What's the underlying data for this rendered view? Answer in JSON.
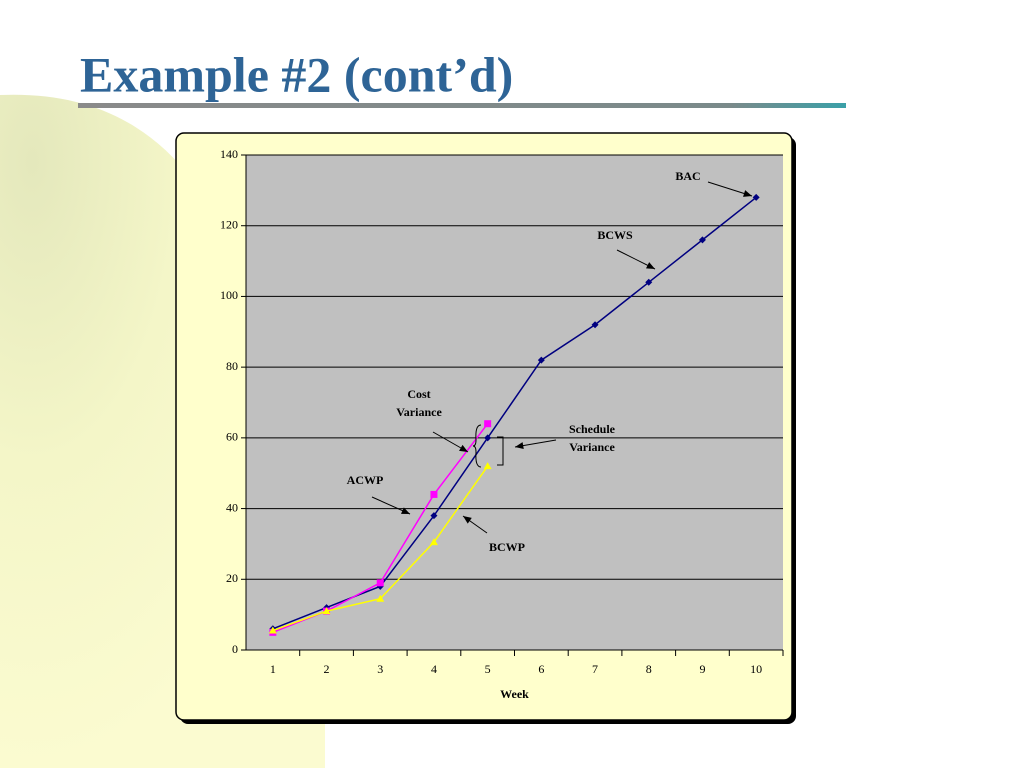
{
  "title": "Example #2 (cont’d)",
  "chart_data": {
    "type": "line",
    "categories": [
      "1",
      "2",
      "3",
      "4",
      "5",
      "6",
      "7",
      "8",
      "9",
      "10"
    ],
    "x_label": "Week",
    "series": [
      {
        "name": "BCWS",
        "color": "#000080",
        "marker": "diamond",
        "values": [
          6,
          12,
          18,
          38,
          60,
          82,
          92,
          104,
          116,
          128
        ]
      },
      {
        "name": "ACWP",
        "color": "#ff00ff",
        "marker": "square",
        "values": [
          5,
          11,
          19,
          44,
          64,
          null,
          null,
          null,
          null,
          null
        ]
      },
      {
        "name": "BCWP",
        "color": "#ffff00",
        "marker": "triangle",
        "values": [
          5.5,
          11,
          14.5,
          30.5,
          52,
          null,
          null,
          null,
          null,
          null
        ]
      }
    ],
    "ylim": [
      0,
      140
    ],
    "yticks": [
      0,
      20,
      40,
      60,
      80,
      100,
      120,
      140
    ],
    "grid": true,
    "annotations": [
      {
        "lines": [
          "BAC"
        ]
      },
      {
        "lines": [
          "BCWS"
        ]
      },
      {
        "lines": [
          "Cost",
          "Variance"
        ]
      },
      {
        "lines": [
          "Schedule",
          "Variance"
        ]
      },
      {
        "lines": [
          "ACWP"
        ]
      },
      {
        "lines": [
          "BCWP"
        ]
      }
    ]
  }
}
